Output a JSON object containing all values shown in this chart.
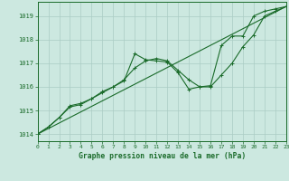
{
  "bg_color": "#cce8e0",
  "grid_color": "#aaccC4",
  "line_color": "#1a6b2a",
  "marker_color": "#1a6b2a",
  "title": "Graphe pression niveau de la mer (hPa)",
  "title_color": "#1a6b2a",
  "xlim": [
    0,
    23
  ],
  "ylim": [
    1013.7,
    1019.6
  ],
  "yticks": [
    1014,
    1015,
    1016,
    1017,
    1018,
    1019
  ],
  "xticks": [
    0,
    1,
    2,
    3,
    4,
    5,
    6,
    7,
    8,
    9,
    10,
    11,
    12,
    13,
    14,
    15,
    16,
    17,
    18,
    19,
    20,
    21,
    22,
    23
  ],
  "line1_x": [
    0,
    1,
    2,
    3,
    4,
    5,
    6,
    7,
    8,
    9,
    10,
    11,
    12,
    13,
    14,
    15,
    16,
    17,
    18,
    19,
    20,
    21,
    22,
    23
  ],
  "line1_y": [
    1014.0,
    1014.3,
    1014.7,
    1015.15,
    1015.25,
    1015.5,
    1015.75,
    1016.0,
    1016.25,
    1017.4,
    1017.15,
    1017.1,
    1017.05,
    1016.6,
    1015.9,
    1016.0,
    1016.05,
    1017.75,
    1018.15,
    1018.15,
    1019.0,
    1019.2,
    1019.3,
    1019.4
  ],
  "line2_x": [
    0,
    1,
    2,
    3,
    4,
    5,
    6,
    7,
    8,
    9,
    10,
    11,
    12,
    13,
    14,
    15,
    16,
    17,
    18,
    19,
    20,
    21,
    22,
    23
  ],
  "line2_y": [
    1014.0,
    1014.3,
    1014.7,
    1015.2,
    1015.3,
    1015.5,
    1015.8,
    1016.0,
    1016.3,
    1016.8,
    1017.1,
    1017.2,
    1017.1,
    1016.7,
    1016.3,
    1016.0,
    1016.0,
    1016.5,
    1017.0,
    1017.7,
    1018.2,
    1019.0,
    1019.2,
    1019.4
  ],
  "line3_x": [
    0,
    23
  ],
  "line3_y": [
    1014.0,
    1019.4
  ]
}
